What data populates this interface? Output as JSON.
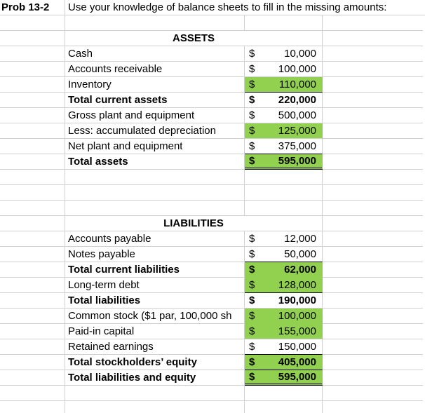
{
  "title": {
    "problem_label": "Prob 13-2",
    "instruction": "Use your knowledge of balance sheets to fill in the missing amounts:"
  },
  "currency_symbol": "$",
  "colors": {
    "highlight_green": "#92D050",
    "gridline": "#d0d0d0",
    "rule_black": "#000000"
  },
  "sections": [
    {
      "header": "ASSETS",
      "rows": [
        {
          "label": "Cash",
          "amount": "10,000",
          "bold": false,
          "fill": false,
          "rule_above": false,
          "double_below": false
        },
        {
          "label": "Accounts receivable",
          "amount": "100,000",
          "bold": false,
          "fill": false,
          "rule_above": false,
          "double_below": false
        },
        {
          "label": "Inventory",
          "amount": "110,000",
          "bold": false,
          "fill": true,
          "rule_above": false,
          "double_below": false
        },
        {
          "label": "Total current assets",
          "amount": "220,000",
          "bold": true,
          "fill": false,
          "rule_above": true,
          "double_below": false
        },
        {
          "label": "Gross plant and equipment",
          "amount": "500,000",
          "bold": false,
          "fill": false,
          "rule_above": false,
          "double_below": false
        },
        {
          "label": "Less: accumulated depreciation",
          "amount": "125,000",
          "bold": false,
          "fill": true,
          "rule_above": false,
          "double_below": false
        },
        {
          "label": "Net plant and equipment",
          "amount": "375,000",
          "bold": false,
          "fill": false,
          "rule_above": false,
          "double_below": false
        },
        {
          "label": "Total assets",
          "amount": "595,000",
          "bold": true,
          "fill": true,
          "rule_above": true,
          "double_below": true
        }
      ]
    },
    {
      "header": "LIABILITIES",
      "rows": [
        {
          "label": "Accounts payable",
          "amount": "12,000",
          "bold": false,
          "fill": false,
          "rule_above": false,
          "double_below": false
        },
        {
          "label": "Notes payable",
          "amount": "50,000",
          "bold": false,
          "fill": false,
          "rule_above": false,
          "double_below": false
        },
        {
          "label": "Total current liabilities",
          "amount": "62,000",
          "bold": true,
          "fill": true,
          "rule_above": true,
          "double_below": false
        },
        {
          "label": "Long-term debt",
          "amount": "128,000",
          "bold": false,
          "fill": true,
          "rule_above": false,
          "double_below": false
        },
        {
          "label": "Total liabilities",
          "amount": "190,000",
          "bold": true,
          "fill": false,
          "rule_above": true,
          "double_below": false
        },
        {
          "label": "Common stock ($1 par, 100,000 sh",
          "amount": "100,000",
          "bold": false,
          "fill": true,
          "rule_above": false,
          "double_below": false
        },
        {
          "label": "Paid-in capital",
          "amount": "155,000",
          "bold": false,
          "fill": true,
          "rule_above": false,
          "double_below": false
        },
        {
          "label": "Retained earnings",
          "amount": "150,000",
          "bold": false,
          "fill": false,
          "rule_above": false,
          "double_below": false
        },
        {
          "label": "Total stockholders’ equity",
          "amount": "405,000",
          "bold": true,
          "fill": true,
          "rule_above": true,
          "double_below": false
        },
        {
          "label": "Total liabilities and equity",
          "amount": "595,000",
          "bold": true,
          "fill": true,
          "rule_above": true,
          "double_below": true
        }
      ]
    }
  ]
}
